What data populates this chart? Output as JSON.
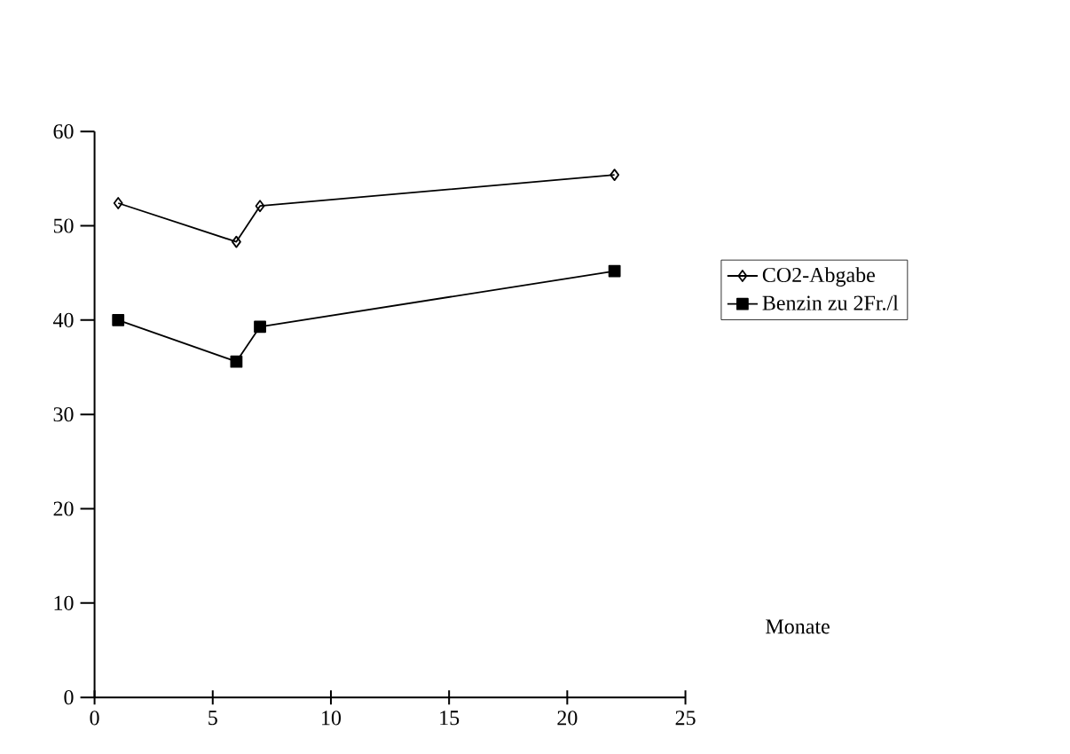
{
  "chart_data": {
    "type": "line",
    "xlabel": "Monate",
    "xlim": [
      0,
      25
    ],
    "xticks": [
      0,
      5,
      10,
      15,
      20,
      25
    ],
    "ylim": [
      0,
      60
    ],
    "yticks": [
      0,
      10,
      20,
      30,
      40,
      50,
      60
    ],
    "grid": false,
    "legend": "right",
    "line_style": "solid",
    "series": [
      {
        "name": "CO2-Abgabe",
        "color": "#000000",
        "marker": "diamond",
        "x": [
          1,
          6,
          7,
          22
        ],
        "values": [
          52.4,
          48.3,
          52.1,
          55.4
        ]
      },
      {
        "name": "Benzin zu 2Fr./l",
        "color": "#000000",
        "marker": "square",
        "x": [
          1,
          6,
          7,
          22
        ],
        "values": [
          40,
          35.6,
          39.3,
          45.2
        ]
      }
    ]
  }
}
